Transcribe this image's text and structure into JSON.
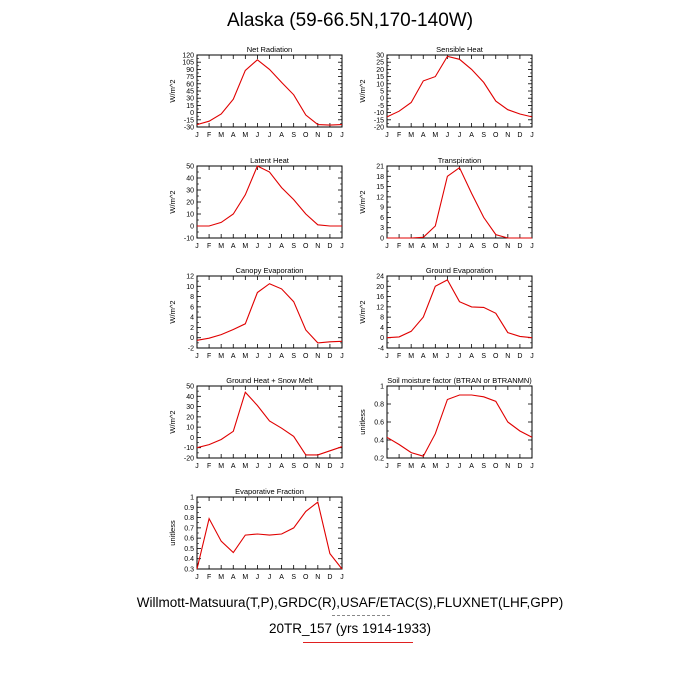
{
  "title": "Alaska (59-66.5N,170-140W)",
  "footer": {
    "line1": "Willmott-Matsuura(T,P),GRDC(R),USAF/ETAC(S),FLUXNET(LHF,GPP)",
    "line2": "20TR_157 (yrs 1914-1933)"
  },
  "colors": {
    "series": "#e00000",
    "legend_dash": "#888888"
  },
  "months": [
    "J",
    "F",
    "M",
    "A",
    "M",
    "J",
    "J",
    "A",
    "S",
    "O",
    "N",
    "D",
    "J"
  ],
  "chart_data": [
    {
      "type": "line",
      "title": "Net Radiation",
      "ylabel": "W/m^2",
      "ylim": [
        -30,
        120
      ],
      "yticks": [
        -30,
        -15,
        0,
        15,
        30,
        45,
        60,
        75,
        90,
        105,
        120
      ],
      "values": [
        -25,
        -18,
        -3,
        28,
        88,
        110,
        90,
        63,
        37,
        -5,
        -25,
        -26,
        -25
      ]
    },
    {
      "type": "line",
      "title": "Sensible Heat",
      "ylabel": "W/m^2",
      "ylim": [
        -20,
        30
      ],
      "yticks": [
        -20,
        -15,
        -10,
        -5,
        0,
        5,
        10,
        15,
        20,
        25,
        30
      ],
      "values": [
        -13,
        -9,
        -3,
        12,
        15,
        29,
        27,
        20,
        11,
        -2,
        -8,
        -11,
        -13
      ]
    },
    {
      "type": "line",
      "title": "Latent Heat",
      "ylabel": "W/m^2",
      "ylim": [
        -10,
        50
      ],
      "yticks": [
        -10,
        0,
        10,
        20,
        30,
        40,
        50
      ],
      "values": [
        0,
        0,
        3,
        10,
        26,
        50,
        45,
        32,
        22,
        10,
        1,
        0,
        0
      ]
    },
    {
      "type": "line",
      "title": "Transpiration",
      "ylabel": "W/m^2",
      "ylim": [
        0,
        21
      ],
      "yticks": [
        0,
        3,
        6,
        9,
        12,
        15,
        18,
        21
      ],
      "values": [
        0,
        0,
        0,
        0.2,
        3.5,
        18,
        20.5,
        13,
        6,
        1,
        0,
        0,
        0
      ]
    },
    {
      "type": "line",
      "title": "Canopy Evaporation",
      "ylabel": "W/m^2",
      "ylim": [
        -2,
        12
      ],
      "yticks": [
        -2,
        0,
        2,
        4,
        6,
        8,
        10,
        12
      ],
      "values": [
        -0.5,
        -0.1,
        0.6,
        1.6,
        2.7,
        8.8,
        10.5,
        9.5,
        7,
        1.5,
        -1,
        -0.8,
        -0.7
      ]
    },
    {
      "type": "line",
      "title": "Ground Evaporation",
      "ylabel": "W/m^2",
      "ylim": [
        -4,
        24
      ],
      "yticks": [
        -4,
        0,
        4,
        8,
        12,
        16,
        20,
        24
      ],
      "values": [
        0,
        0.3,
        2.5,
        8,
        20,
        22.5,
        14,
        12,
        11.8,
        9.5,
        2,
        0.5,
        0
      ]
    },
    {
      "type": "line",
      "title": "Ground Heat + Snow Melt",
      "ylabel": "W/m^2",
      "ylim": [
        -20,
        50
      ],
      "yticks": [
        -20,
        -10,
        0,
        10,
        20,
        30,
        40,
        50
      ],
      "values": [
        -10,
        -7,
        -2,
        6,
        44,
        31,
        16,
        9,
        1,
        -17,
        -17,
        -13,
        -9
      ]
    },
    {
      "type": "line",
      "title": "Soil moisture factor (BTRAN or BTRANMN)",
      "ylabel": "unitless",
      "ylim": [
        0.2,
        1.0
      ],
      "yticks": [
        0.2,
        0.4,
        0.6,
        0.8,
        1.0
      ],
      "values": [
        0.43,
        0.35,
        0.26,
        0.22,
        0.47,
        0.85,
        0.9,
        0.9,
        0.88,
        0.83,
        0.6,
        0.5,
        0.43
      ]
    },
    {
      "type": "line",
      "title": "Evaporative Fraction",
      "ylabel": "unitless",
      "ylim": [
        0.3,
        1.0
      ],
      "yticks": [
        0.3,
        0.4,
        0.5,
        0.6,
        0.7,
        0.8,
        0.9,
        1.0
      ],
      "values": [
        0.3,
        0.79,
        0.57,
        0.46,
        0.63,
        0.64,
        0.63,
        0.64,
        0.7,
        0.86,
        0.95,
        0.45,
        0.3
      ]
    }
  ]
}
